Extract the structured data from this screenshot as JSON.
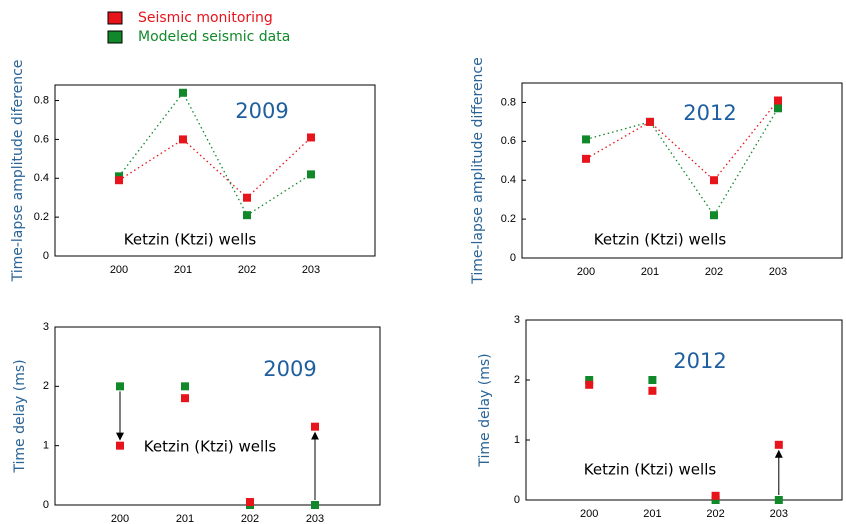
{
  "legend_position": "upper left",
  "chart_data": [
    {
      "type": "line",
      "line_style": "dotted",
      "title": "2009",
      "annotation": "Ketzin (Ktzi) wells",
      "ylabel": "Time-lapse amplitude  diference",
      "categories": [
        "200",
        "201",
        "202",
        "203"
      ],
      "series": [
        {
          "name": "Seismic monitoring",
          "color": "#e8141b",
          "values": [
            0.39,
            0.6,
            0.3,
            0.61
          ]
        },
        {
          "name": "Modeled seismic data",
          "color": "#11892b",
          "values": [
            0.41,
            0.84,
            0.21,
            0.42
          ]
        }
      ],
      "ylim": [
        0,
        0.88
      ],
      "yticks": [
        0,
        0.2,
        0.4,
        0.6,
        0.8
      ]
    },
    {
      "type": "line",
      "line_style": "dotted",
      "title": "2012",
      "annotation": "Ketzin (Ktzi) wells",
      "ylabel": "Time-lapse amplitude  difference",
      "categories": [
        "200",
        "201",
        "202",
        "203"
      ],
      "series": [
        {
          "color": "#e8141b",
          "values": [
            0.51,
            0.7,
            0.4,
            0.81
          ]
        },
        {
          "color": "#11892b",
          "values": [
            0.61,
            0.7,
            0.22,
            0.77
          ]
        }
      ],
      "ylim": [
        0,
        0.9
      ],
      "yticks": [
        0,
        0.2,
        0.4,
        0.6,
        0.8
      ]
    },
    {
      "type": "scatter",
      "arrows": true,
      "title": "2009",
      "annotation": "Ketzin (Ktzi) wells",
      "ylabel": "Time delay (ms)",
      "categories": [
        "200",
        "201",
        "202",
        "203"
      ],
      "series": [
        {
          "color": "#e8141b",
          "values": [
            1.0,
            1.8,
            0.05,
            1.32
          ]
        },
        {
          "color": "#11892b",
          "values": [
            2.0,
            2.0,
            0,
            0
          ]
        }
      ],
      "ylim": [
        0,
        3
      ],
      "yticks": [
        0,
        1,
        2,
        3
      ]
    },
    {
      "type": "scatter",
      "arrows": true,
      "title": "2012",
      "annotation": "Ketzin (Ktzi) wells",
      "ylabel": "Time delay (ms)",
      "categories": [
        "200",
        "201",
        "202",
        "203"
      ],
      "series": [
        {
          "color": "#e8141b",
          "values": [
            1.92,
            1.82,
            0.07,
            0.92
          ]
        },
        {
          "color": "#11892b",
          "values": [
            2.0,
            2.0,
            0,
            0
          ]
        }
      ],
      "ylim": [
        0,
        3
      ],
      "yticks": [
        0,
        1,
        2,
        3
      ]
    }
  ]
}
